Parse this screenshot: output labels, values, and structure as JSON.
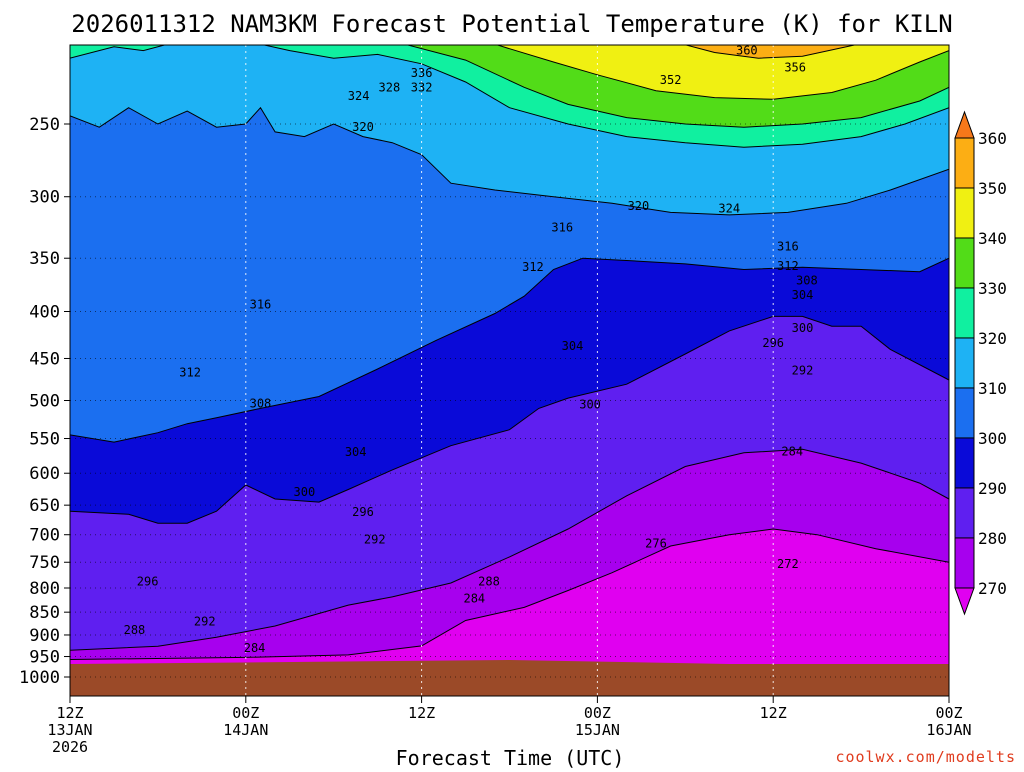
{
  "chart_data": {
    "type": "heatmap",
    "title": "2026011312 NAM3KM Forecast Potential Temperature (K) for KILN",
    "xlabel": "Forecast Time (UTC)",
    "ylabel": "",
    "credit": "coolwx.com/modelts",
    "x_ticks": [
      {
        "hours": 0,
        "line1": "12Z",
        "line2": "13JAN",
        "line3": "2026"
      },
      {
        "hours": 12,
        "line1": "00Z",
        "line2": "14JAN",
        "line3": ""
      },
      {
        "hours": 24,
        "line1": "12Z",
        "line2": "",
        "line3": ""
      },
      {
        "hours": 36,
        "line1": "00Z",
        "line2": "15JAN",
        "line3": ""
      },
      {
        "hours": 48,
        "line1": "12Z",
        "line2": "",
        "line3": ""
      },
      {
        "hours": 60,
        "line1": "00Z",
        "line2": "16JAN",
        "line3": ""
      }
    ],
    "xlim_hours": [
      0,
      60
    ],
    "y_scale": "log-pressure",
    "y_ticks": [
      250,
      300,
      350,
      400,
      450,
      500,
      550,
      600,
      650,
      700,
      750,
      800,
      850,
      900,
      950,
      1000
    ],
    "ylim_hPa": [
      1000,
      200
    ],
    "colorbar": {
      "levels": [
        270,
        280,
        290,
        300,
        310,
        320,
        330,
        340,
        350,
        360
      ],
      "colors": [
        "#e000f0",
        "#a700ee",
        "#5f1ff0",
        "#0a0ad8",
        "#1b6ff0",
        "#1eb2f4",
        "#10f0a0",
        "#52dc18",
        "#f0f012",
        "#fcae14",
        "#f6781a"
      ]
    },
    "fill_colors": {
      "270": "#e000f0",
      "280": "#a700ee",
      "290": "#5f1ff0",
      "300": "#0a0ad8",
      "310": "#1b6ff0",
      "320": "#1eb2f4",
      "330": "#10f0a0",
      "340": "#52dc18",
      "350": "#f0f012",
      "360": "#fcae14"
    },
    "ground_color": "#9b4a28",
    "contour_labels": [
      {
        "value": "360",
        "t": 46.2,
        "p": 208
      },
      {
        "value": "356",
        "t": 49.5,
        "p": 217
      },
      {
        "value": "352",
        "t": 41.0,
        "p": 224
      },
      {
        "value": "336",
        "t": 24.0,
        "p": 220
      },
      {
        "value": "332",
        "t": 24.0,
        "p": 228
      },
      {
        "value": "328",
        "t": 21.8,
        "p": 228
      },
      {
        "value": "324",
        "t": 19.7,
        "p": 233
      },
      {
        "value": "320",
        "t": 20.0,
        "p": 252
      },
      {
        "value": "320",
        "t": 38.8,
        "p": 307
      },
      {
        "value": "324",
        "t": 45.0,
        "p": 309
      },
      {
        "value": "316",
        "t": 33.6,
        "p": 324
      },
      {
        "value": "316",
        "t": 49.0,
        "p": 340
      },
      {
        "value": "312",
        "t": 31.6,
        "p": 358
      },
      {
        "value": "312",
        "t": 49.0,
        "p": 357
      },
      {
        "value": "308",
        "t": 50.3,
        "p": 370
      },
      {
        "value": "304",
        "t": 50.0,
        "p": 384
      },
      {
        "value": "316",
        "t": 13.0,
        "p": 393
      },
      {
        "value": "300",
        "t": 50.0,
        "p": 417
      },
      {
        "value": "296",
        "t": 48.0,
        "p": 433
      },
      {
        "value": "304",
        "t": 34.3,
        "p": 436
      },
      {
        "value": "292",
        "t": 50.0,
        "p": 464
      },
      {
        "value": "312",
        "t": 8.2,
        "p": 466
      },
      {
        "value": "308",
        "t": 13.0,
        "p": 504
      },
      {
        "value": "300",
        "t": 35.5,
        "p": 505
      },
      {
        "value": "284",
        "t": 49.3,
        "p": 568
      },
      {
        "value": "304",
        "t": 19.5,
        "p": 569
      },
      {
        "value": "300",
        "t": 16.0,
        "p": 629
      },
      {
        "value": "296",
        "t": 20.0,
        "p": 661
      },
      {
        "value": "292",
        "t": 20.8,
        "p": 708
      },
      {
        "value": "276",
        "t": 40.0,
        "p": 716
      },
      {
        "value": "272",
        "t": 49.0,
        "p": 753
      },
      {
        "value": "296",
        "t": 5.3,
        "p": 787
      },
      {
        "value": "288",
        "t": 28.6,
        "p": 787
      },
      {
        "value": "284",
        "t": 27.6,
        "p": 821
      },
      {
        "value": "292",
        "t": 9.2,
        "p": 870
      },
      {
        "value": "288",
        "t": 4.4,
        "p": 889
      },
      {
        "value": "284",
        "t": 12.6,
        "p": 930
      }
    ],
    "boundaries": [
      {
        "level": 280,
        "pts": [
          [
            0,
            957
          ],
          [
            12,
            952
          ],
          [
            19,
            946
          ],
          [
            24,
            925
          ],
          [
            27,
            868
          ],
          [
            31,
            840
          ],
          [
            34,
            805
          ],
          [
            37,
            770
          ],
          [
            41,
            720
          ],
          [
            45,
            700
          ],
          [
            48,
            690
          ],
          [
            51,
            700
          ],
          [
            55,
            725
          ],
          [
            60,
            750
          ]
        ]
      },
      {
        "level": 290,
        "pts": [
          [
            0,
            935
          ],
          [
            6,
            926
          ],
          [
            10,
            905
          ],
          [
            14,
            880
          ],
          [
            19,
            835
          ],
          [
            22,
            818
          ],
          [
            26,
            790
          ],
          [
            30,
            740
          ],
          [
            34,
            690
          ],
          [
            38,
            635
          ],
          [
            42,
            590
          ],
          [
            46,
            570
          ],
          [
            50,
            565
          ],
          [
            54,
            585
          ],
          [
            58,
            615
          ],
          [
            60,
            640
          ]
        ]
      },
      {
        "level": 300,
        "pts": [
          [
            0,
            660
          ],
          [
            4,
            665
          ],
          [
            6,
            680
          ],
          [
            8,
            680
          ],
          [
            10,
            660
          ],
          [
            12,
            618
          ],
          [
            14,
            640
          ],
          [
            17,
            645
          ],
          [
            19,
            625
          ],
          [
            22,
            595
          ],
          [
            26,
            560
          ],
          [
            30,
            538
          ],
          [
            32,
            510
          ],
          [
            34,
            497
          ],
          [
            38,
            480
          ],
          [
            42,
            445
          ],
          [
            45,
            420
          ],
          [
            48,
            405
          ],
          [
            50,
            405
          ],
          [
            52,
            415
          ],
          [
            54,
            415
          ],
          [
            56,
            440
          ],
          [
            60,
            475
          ]
        ]
      },
      {
        "level": 310,
        "pts": [
          [
            0,
            545
          ],
          [
            3,
            555
          ],
          [
            6,
            542
          ],
          [
            8,
            530
          ],
          [
            10,
            522
          ],
          [
            13,
            510
          ],
          [
            17,
            495
          ],
          [
            21,
            462
          ],
          [
            25,
            430
          ],
          [
            29,
            402
          ],
          [
            31,
            385
          ],
          [
            33,
            360
          ],
          [
            35,
            350
          ],
          [
            38,
            352
          ],
          [
            42,
            355
          ],
          [
            46,
            360
          ],
          [
            50,
            358
          ],
          [
            54,
            360
          ],
          [
            58,
            362
          ],
          [
            60,
            350
          ]
        ]
      },
      {
        "level": 320,
        "pts": [
          [
            0,
            245
          ],
          [
            2,
            252
          ],
          [
            4,
            240
          ],
          [
            6,
            250
          ],
          [
            8,
            242
          ],
          [
            10,
            252
          ],
          [
            12,
            250
          ],
          [
            13,
            240
          ],
          [
            14,
            255
          ],
          [
            16,
            258
          ],
          [
            18,
            250
          ],
          [
            20,
            258
          ],
          [
            22,
            262
          ],
          [
            24,
            270
          ],
          [
            26,
            290
          ],
          [
            29,
            295
          ],
          [
            33,
            300
          ],
          [
            37,
            305
          ],
          [
            41,
            312
          ],
          [
            45,
            314
          ],
          [
            49,
            312
          ],
          [
            53,
            305
          ],
          [
            56,
            295
          ],
          [
            60,
            280
          ]
        ]
      },
      {
        "level": 330,
        "pts": [
          [
            0,
            212
          ],
          [
            3,
            206
          ],
          [
            5,
            208
          ],
          [
            8,
            202
          ],
          [
            10,
            204
          ],
          [
            12,
            203
          ],
          [
            15,
            208
          ],
          [
            18,
            212
          ],
          [
            21,
            210
          ],
          [
            24,
            215
          ],
          [
            27,
            225
          ],
          [
            30,
            240
          ],
          [
            34,
            250
          ],
          [
            38,
            258
          ],
          [
            42,
            262
          ],
          [
            46,
            265
          ],
          [
            50,
            263
          ],
          [
            54,
            258
          ],
          [
            57,
            250
          ],
          [
            60,
            240
          ]
        ]
      },
      {
        "level": 340,
        "pts": [
          [
            20,
            200
          ],
          [
            23,
            205
          ],
          [
            27,
            213
          ],
          [
            31,
            228
          ],
          [
            34,
            238
          ],
          [
            38,
            246
          ],
          [
            42,
            250
          ],
          [
            46,
            252
          ],
          [
            50,
            250
          ],
          [
            54,
            246
          ],
          [
            58,
            236
          ],
          [
            60,
            228
          ]
        ]
      },
      {
        "level": 350,
        "pts": [
          [
            27,
            200
          ],
          [
            30,
            207
          ],
          [
            33,
            214
          ],
          [
            36,
            221
          ],
          [
            40,
            230
          ],
          [
            44,
            234
          ],
          [
            48,
            235
          ],
          [
            52,
            231
          ],
          [
            55,
            224
          ],
          [
            58,
            214
          ],
          [
            60,
            208
          ]
        ]
      },
      {
        "level": 360,
        "pts": [
          [
            38,
            200
          ],
          [
            41,
            203
          ],
          [
            44,
            209
          ],
          [
            47,
            212
          ],
          [
            50,
            211
          ],
          [
            53,
            206
          ],
          [
            56,
            201
          ],
          [
            57,
            200
          ]
        ]
      }
    ]
  }
}
